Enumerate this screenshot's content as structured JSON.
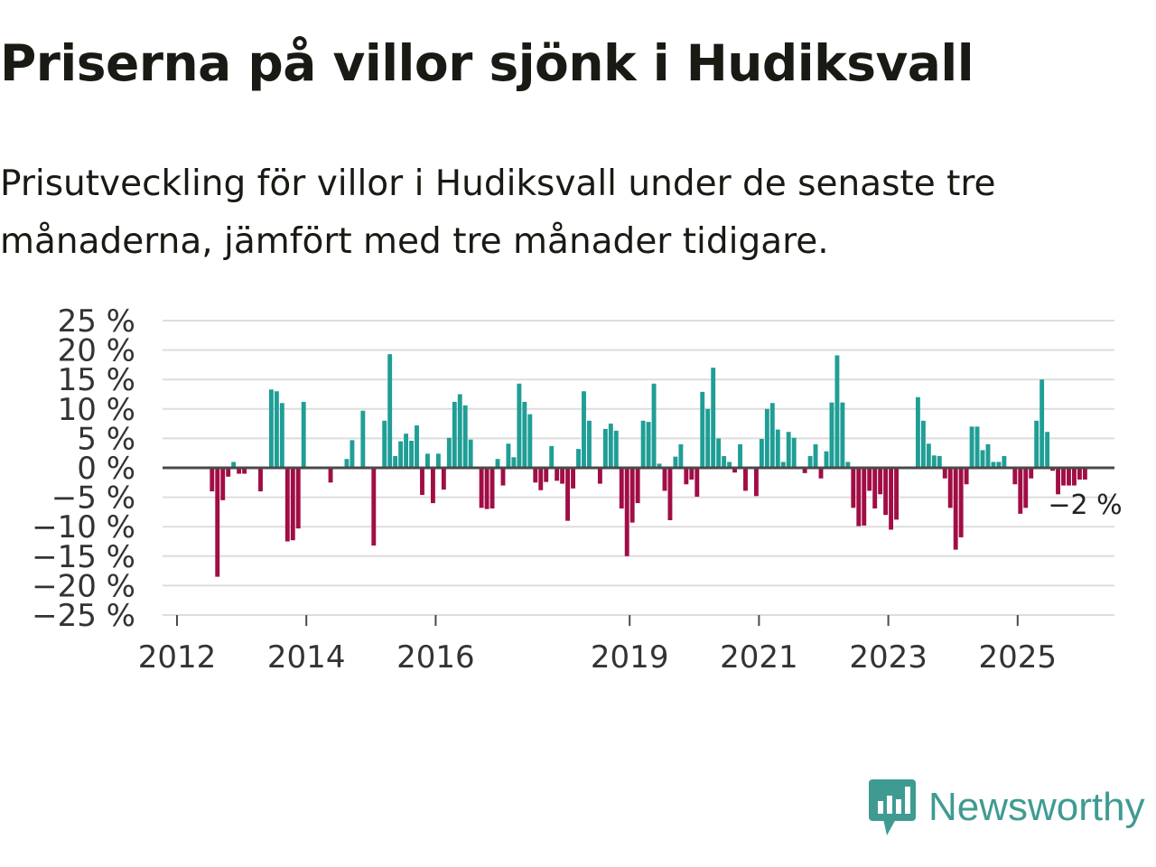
{
  "title": "Priserna på villor sjönk i Hudiksvall",
  "subtitle": "Prisutveckling för villor i Hudiksvall under de senaste tre månaderna, jämfört med tre månader tidigare.",
  "brand": {
    "name": "Newsworthy"
  },
  "colors": {
    "positive": "#1f9e96",
    "negative": "#a10d45",
    "grid": "#dddddd",
    "axis": "#4a4a4a",
    "brand": "#3f9b92"
  },
  "chart_data": {
    "type": "bar",
    "y_unit": "%",
    "ylim": [
      -25,
      25
    ],
    "yticks": [
      25,
      20,
      15,
      10,
      5,
      0,
      -5,
      -10,
      -15,
      -20,
      -25
    ],
    "ytick_labels": [
      "25 %",
      "20 %",
      "15 %",
      "10 %",
      "5 %",
      "0 %",
      "−5 %",
      "−10 %",
      "−15 %",
      "−20 %",
      "−25 %"
    ],
    "x_start_year": 2012,
    "x_end_year": 2026.5,
    "xticks": [
      2012,
      2014,
      2016,
      2019,
      2021,
      2023,
      2025
    ],
    "xtick_labels": [
      "2012",
      "2014",
      "2016",
      "2019",
      "2021",
      "2023",
      "2025"
    ],
    "last_value_label": "−2 %",
    "series": [
      {
        "name": "Prisutveckling villor Hudiksvall",
        "start": "2012-01",
        "values": [
          0,
          0,
          0,
          0,
          0,
          0,
          -4,
          -18.5,
          -5.5,
          -1.5,
          1,
          -1,
          -1,
          0,
          0,
          -4,
          0,
          13.3,
          13,
          11,
          -12.5,
          -12.3,
          -10.3,
          11.2,
          0,
          0,
          0,
          0,
          -2.5,
          0,
          0,
          1.5,
          4.7,
          0,
          9.7,
          0,
          -13.2,
          0,
          8,
          19.3,
          2,
          4.5,
          5.8,
          4.6,
          7.2,
          -4.6,
          2.4,
          -6,
          2.4,
          -3.7,
          5.1,
          11.2,
          12.5,
          10.6,
          4.8,
          0,
          -6.8,
          -7,
          -6.9,
          1.5,
          -3,
          4.1,
          1.8,
          14.3,
          11.2,
          9.1,
          -2.5,
          -3.8,
          -2.4,
          3.7,
          -2.2,
          -2.7,
          -9,
          -3.5,
          3.2,
          13,
          8,
          0,
          -2.7,
          6.6,
          7.5,
          6.3,
          -6.9,
          -15,
          -9.3,
          -6,
          8,
          7.8,
          14.3,
          0.7,
          -3.9,
          -8.9,
          1.9,
          4,
          -2.8,
          -2,
          -4.9,
          12.9,
          10,
          17,
          5,
          2,
          1,
          -0.8,
          4,
          -3.9,
          0,
          -4.8,
          4.9,
          10,
          11,
          6.5,
          1,
          6.1,
          5.1,
          0,
          -0.9,
          2,
          4,
          -1.8,
          2.8,
          11.1,
          19.1,
          11.1,
          1,
          -6.8,
          -9.9,
          -9.8,
          -3.9,
          -6.9,
          -4.5,
          -8,
          -10.5,
          -8.8,
          0,
          0,
          0,
          12,
          8,
          4.1,
          2.1,
          2,
          -1.8,
          -6.8,
          -13.9,
          -11.8,
          -2.8,
          7,
          7,
          3,
          4,
          1,
          1,
          2,
          0,
          -2.8,
          -7.8,
          -6.8,
          -1.8,
          8,
          15,
          6.1,
          -0.5,
          -4.5,
          -3,
          -3,
          -3,
          -2,
          -2
        ]
      }
    ]
  }
}
